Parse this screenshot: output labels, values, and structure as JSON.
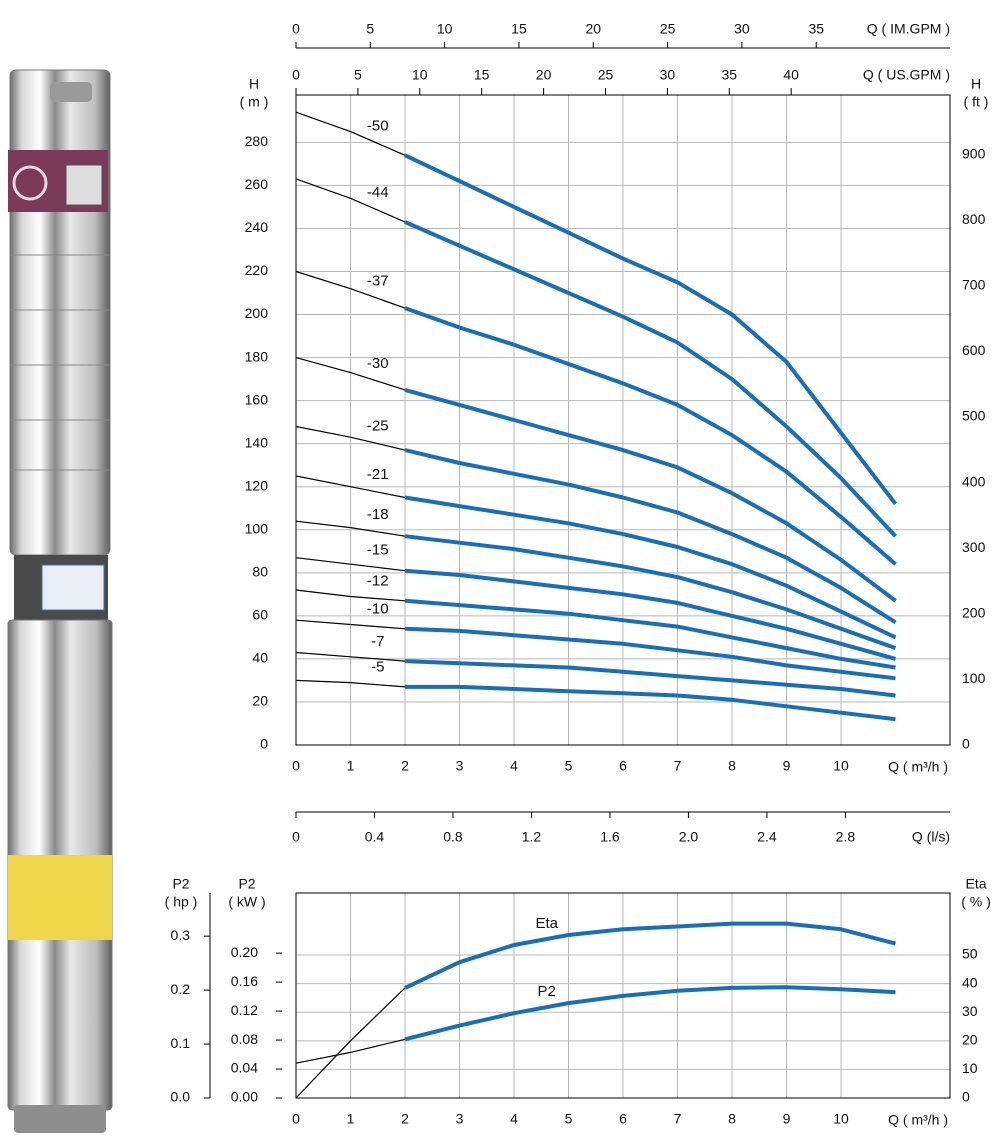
{
  "chart_data": [
    {
      "type": "line",
      "x": [
        0,
        1,
        2,
        3,
        4,
        5,
        6,
        7,
        8,
        9,
        10,
        11
      ],
      "xlabel": "Q ( m³/h )",
      "xlim": [
        0,
        12
      ],
      "xticks": [
        0,
        1,
        2,
        3,
        4,
        5,
        6,
        7,
        8,
        9,
        10
      ],
      "ylabel": [
        "H",
        "( m )"
      ],
      "ylim": [
        0,
        302
      ],
      "yticks": [
        0,
        20,
        40,
        60,
        80,
        100,
        120,
        140,
        160,
        180,
        200,
        220,
        240,
        260,
        280
      ],
      "y2label": [
        "H",
        "( ft )"
      ],
      "y2lim": [
        0,
        990.8
      ],
      "y2ticks": [
        0,
        100,
        200,
        300,
        400,
        500,
        600,
        700,
        800,
        900
      ],
      "x_us_gpm": {
        "label": "Q ( US.GPM )",
        "xlim": [
          0,
          52.83
        ],
        "xticks": [
          0,
          5,
          10,
          15,
          20,
          25,
          30,
          35,
          40
        ]
      },
      "x_im_gpm": {
        "label": "Q ( IM.GPM )",
        "xlim": [
          0,
          44
        ],
        "xticks": [
          0,
          5,
          10,
          15,
          20,
          25,
          30,
          35
        ]
      },
      "x_ls": {
        "label": "Q (l/s)",
        "xlim": [
          0,
          3.333
        ],
        "xticks": [
          0,
          0.4,
          0.8,
          1.2,
          1.6,
          {
            "value": 2,
            "label": "2.0"
          },
          2.4,
          2.8
        ]
      },
      "grid": true,
      "highlight_from_x": 2,
      "base_color": "#000000",
      "series": [
        {
          "name": "-50",
          "color": "#1a6fb4",
          "values": [
            294,
            285,
            274,
            262,
            250,
            238,
            226,
            215,
            200,
            178,
            145,
            112
          ]
        },
        {
          "name": "-44",
          "color": "#1a6fb4",
          "values": [
            263,
            254,
            243,
            232,
            221,
            210,
            199,
            187,
            170,
            148,
            124,
            97
          ]
        },
        {
          "name": "-37",
          "color": "#1a6fb4",
          "values": [
            220,
            212,
            203,
            194,
            186,
            177,
            168,
            158,
            144,
            127,
            106,
            84
          ]
        },
        {
          "name": "-30",
          "color": "#1a6fb4",
          "values": [
            180,
            173,
            165,
            158,
            151,
            144,
            137,
            129,
            117,
            103,
            86,
            67
          ]
        },
        {
          "name": "-25",
          "color": "#1a6fb4",
          "values": [
            148,
            143,
            137,
            131,
            126,
            121,
            115,
            108,
            98,
            87,
            73,
            57
          ]
        },
        {
          "name": "-21",
          "color": "#1a6fb4",
          "values": [
            125,
            120,
            115,
            111,
            107,
            103,
            98,
            92,
            84,
            74,
            62,
            50
          ]
        },
        {
          "name": "-18",
          "color": "#1a6fb4",
          "values": [
            104,
            101,
            97,
            94,
            91,
            87,
            83,
            78,
            71,
            63,
            54,
            45
          ]
        },
        {
          "name": "-15",
          "color": "#1a6fb4",
          "values": [
            87,
            84,
            81,
            79,
            76,
            73,
            70,
            66,
            60,
            54,
            47,
            40
          ]
        },
        {
          "name": "-12",
          "color": "#1a6fb4",
          "values": [
            72,
            69,
            67,
            65,
            63,
            61,
            58,
            55,
            50,
            45,
            40,
            36
          ]
        },
        {
          "name": "-10",
          "color": "#1a6fb4",
          "values": [
            58,
            56,
            54,
            53,
            51,
            49,
            47,
            44,
            41,
            37,
            34,
            31
          ]
        },
        {
          "name": "-7",
          "color": "#1a6fb4",
          "values": [
            43,
            41,
            39,
            38,
            37,
            36,
            34,
            32,
            30,
            28,
            26,
            23
          ]
        },
        {
          "name": "-5",
          "color": "#1a6fb4",
          "values": [
            30,
            29,
            27,
            27,
            26,
            25,
            24,
            23,
            21,
            18,
            15,
            12
          ]
        }
      ]
    },
    {
      "type": "line",
      "x": [
        0,
        1,
        2,
        3,
        4,
        5,
        6,
        7,
        8,
        9,
        10,
        11
      ],
      "xlabel": "Q ( m³/h )",
      "xlim": [
        0,
        12
      ],
      "xticks": [
        0,
        1,
        2,
        3,
        4,
        5,
        6,
        7,
        8,
        9,
        10
      ],
      "ylabel": [
        "P2",
        "( kW )"
      ],
      "ylim": [
        0,
        0.283
      ],
      "yticks": [
        {
          "value": 0,
          "label": "0.00"
        },
        0.04,
        0.08,
        0.12,
        0.16,
        {
          "value": 0.2,
          "label": "0.20"
        }
      ],
      "y3label": [
        "P2",
        "( hp )"
      ],
      "y3lim": [
        0,
        0.38
      ],
      "y3ticks": [
        {
          "value": 0,
          "label": "0.0"
        },
        0.1,
        0.2,
        0.3
      ],
      "y2label": [
        "Eta",
        "( % )"
      ],
      "y2lim": [
        0,
        71.7
      ],
      "y2ticks": [
        0,
        10,
        20,
        30,
        40,
        50
      ],
      "grid": true,
      "highlight_from_x": 2,
      "base_color": "#000000",
      "series": [
        {
          "name": "Eta",
          "color": "#1a6fb4",
          "axis": "y2",
          "values": [
            0,
            20,
            38.5,
            47.5,
            53.5,
            57,
            59,
            60,
            61,
            61,
            59,
            54
          ]
        },
        {
          "name": "P2",
          "color": "#1a6fb4",
          "values": [
            0.048,
            0.063,
            0.081,
            0.1,
            0.117,
            0.131,
            0.141,
            0.148,
            0.152,
            0.153,
            0.15,
            0.146
          ]
        }
      ]
    }
  ]
}
